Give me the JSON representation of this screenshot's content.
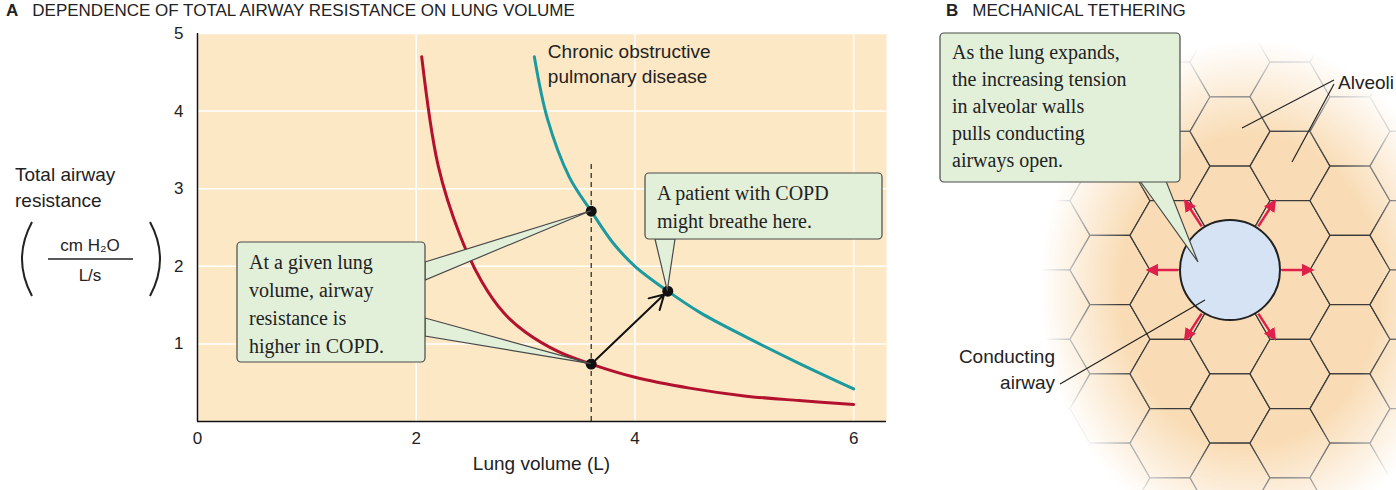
{
  "chart_data": {
    "type": "line",
    "panel": "A",
    "title": "DEPENDENCE OF TOTAL AIRWAY RESISTANCE ON LUNG VOLUME",
    "x_label": "Lung volume (L)",
    "y_label": [
      "Total airway",
      "resistance"
    ],
    "y_unit": {
      "numerator": "cm H₂O",
      "denominator": "L/s"
    },
    "xlim": [
      0,
      6.3
    ],
    "xticks": [
      0,
      2,
      4,
      6
    ],
    "ylim": [
      0,
      5
    ],
    "yticks": [
      1,
      2,
      3,
      4,
      5
    ],
    "grid": true,
    "series": [
      {
        "color": "#b3122e",
        "x": [
          2.05,
          2.2,
          2.4,
          2.6,
          2.8,
          3.0,
          3.3,
          3.6,
          4.0,
          4.5,
          5.0,
          5.5,
          6.0
        ],
        "values": [
          4.7,
          3.3,
          2.4,
          1.8,
          1.4,
          1.15,
          0.9,
          0.74,
          0.57,
          0.43,
          0.33,
          0.27,
          0.22
        ]
      },
      {
        "name": "Chronic obstructive pulmonary disease",
        "color": "#1b9aa0",
        "x": [
          3.08,
          3.2,
          3.4,
          3.6,
          3.8,
          4.0,
          4.3,
          4.6,
          5.0,
          5.5,
          6.0
        ],
        "values": [
          4.7,
          3.9,
          3.15,
          2.71,
          2.3,
          2.0,
          1.68,
          1.4,
          1.1,
          0.75,
          0.42
        ]
      }
    ],
    "points": [
      {
        "x": 3.6,
        "y": 0.74
      },
      {
        "x": 3.6,
        "y": 2.71
      },
      {
        "x": 4.3,
        "y": 1.68
      }
    ],
    "reference_line": {
      "x": 3.6,
      "y_end": 3.34,
      "line_style": "dashed"
    },
    "arrow": {
      "from": [
        3.6,
        0.74
      ],
      "to": [
        4.3,
        1.68
      ]
    },
    "annotations": [
      {
        "text": [
          "At a given lung",
          "volume, airway",
          "resistance is",
          "higher in COPD."
        ],
        "points": [
          1,
          0
        ]
      },
      {
        "text": [
          "A patient with COPD",
          "might breathe here."
        ],
        "points": [
          2
        ]
      }
    ]
  },
  "diagram": {
    "panel": "B",
    "title": "MECHANICAL TETHERING",
    "callout": [
      "As the lung expands,",
      "the increasing tension",
      "in alveolar walls",
      "pulls conducting",
      "airways open."
    ],
    "alveoli_label": "Alveoli",
    "airway_label": [
      "Conducting",
      "airway"
    ]
  }
}
